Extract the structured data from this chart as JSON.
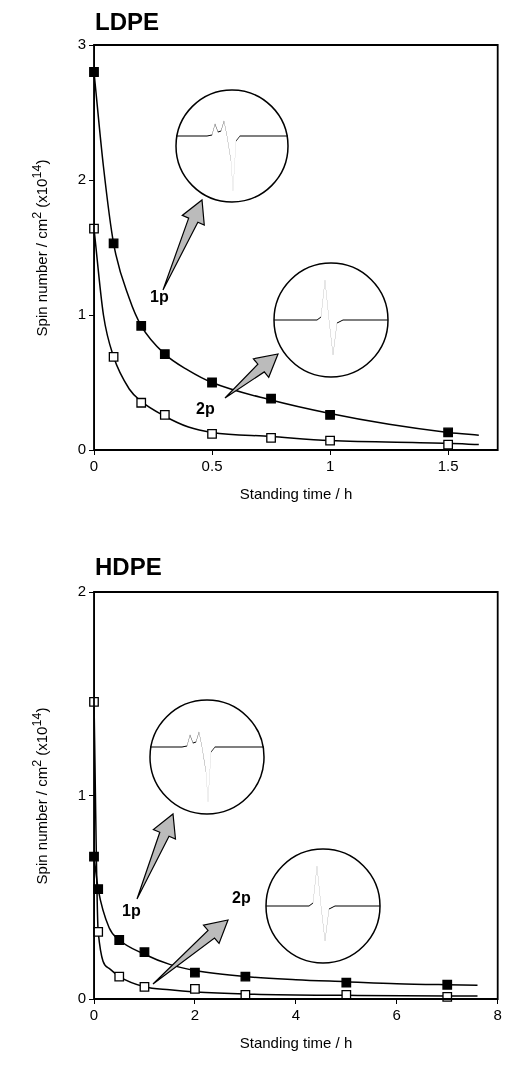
{
  "chart_data": [
    {
      "type": "scatter",
      "title": "LDPE",
      "xlabel": "Standing time / h",
      "ylabel": "Spin number / cm$^{2}$ (x10$^{14}$)",
      "xlim": [
        0,
        1.71
      ],
      "xticks": [
        0,
        0.5,
        1,
        1.5
      ],
      "ylim": [
        0,
        3
      ],
      "yticks": [
        0,
        1,
        2,
        3
      ],
      "marker": "square",
      "grid": false,
      "annotations": [
        "1p",
        "2p"
      ],
      "series": [
        {
          "type": "line",
          "color": "#000000",
          "marker": "none",
          "x": [
            0,
            0.04,
            0.083,
            0.15,
            0.2,
            0.3,
            0.4,
            0.5,
            0.75,
            1,
            1.25,
            1.5,
            1.63
          ],
          "values": [
            2.8,
            2.1,
            1.53,
            1.12,
            0.92,
            0.71,
            0.59,
            0.5,
            0.37,
            0.27,
            0.19,
            0.13,
            0.11
          ]
        },
        {
          "type": "line",
          "color": "#000000",
          "marker": "none",
          "x": [
            0,
            0.04,
            0.083,
            0.15,
            0.2,
            0.3,
            0.4,
            0.5,
            0.75,
            1,
            1.5,
            1.63
          ],
          "values": [
            1.64,
            1.0,
            0.69,
            0.45,
            0.36,
            0.25,
            0.17,
            0.13,
            0.1,
            0.07,
            0.05,
            0.04
          ]
        },
        {
          "color": "#000000",
          "x": [
            0,
            0.083,
            0.2,
            0.3,
            0.5,
            0.75,
            1,
            1.5
          ],
          "values": [
            2.8,
            1.53,
            0.92,
            0.71,
            0.5,
            0.38,
            0.26,
            0.13
          ]
        },
        {
          "color": "#ffffff",
          "x": [
            0,
            0.083,
            0.2,
            0.3,
            0.5,
            0.75,
            1,
            1.5
          ],
          "values": [
            1.64,
            0.69,
            0.35,
            0.26,
            0.12,
            0.09,
            0.07,
            0.04
          ]
        }
      ]
    },
    {
      "type": "scatter",
      "title": "HDPE",
      "xlabel": "Standing time / h",
      "ylabel": "Spin number / cm$^{2}$ (x10$^{14}$)",
      "xlim": [
        0,
        8
      ],
      "xticks": [
        0,
        2,
        4,
        6,
        8
      ],
      "ylim": [
        0,
        2
      ],
      "yticks": [
        0,
        1,
        2
      ],
      "marker": "square",
      "grid": false,
      "annotations": [
        "1p",
        "2p"
      ],
      "series": [
        {
          "type": "line",
          "color": "#000000",
          "marker": "none",
          "x": [
            0,
            0.083,
            0.3,
            0.5,
            1,
            1.5,
            2,
            3,
            4,
            5,
            6,
            7,
            7.6
          ],
          "values": [
            0.7,
            0.54,
            0.35,
            0.29,
            0.22,
            0.17,
            0.14,
            0.11,
            0.095,
            0.085,
            0.075,
            0.07,
            0.068
          ]
        },
        {
          "type": "line",
          "color": "#000000",
          "marker": "none",
          "x": [
            0,
            0.083,
            0.3,
            0.5,
            1,
            1.5,
            2,
            3,
            5,
            7,
            7.6
          ],
          "values": [
            1.46,
            0.33,
            0.15,
            0.11,
            0.06,
            0.045,
            0.035,
            0.025,
            0.018,
            0.015,
            0.015
          ]
        },
        {
          "color": "#000000",
          "x": [
            0,
            0.083,
            0.5,
            1,
            2,
            3,
            5,
            7
          ],
          "values": [
            0.7,
            0.54,
            0.29,
            0.23,
            0.13,
            0.11,
            0.08,
            0.07
          ]
        },
        {
          "color": "#ffffff",
          "x": [
            0,
            0.083,
            0.5,
            1,
            2,
            3,
            5,
            7
          ],
          "values": [
            1.46,
            0.33,
            0.11,
            0.06,
            0.05,
            0.02,
            0.02,
            0.01
          ]
        }
      ]
    }
  ]
}
